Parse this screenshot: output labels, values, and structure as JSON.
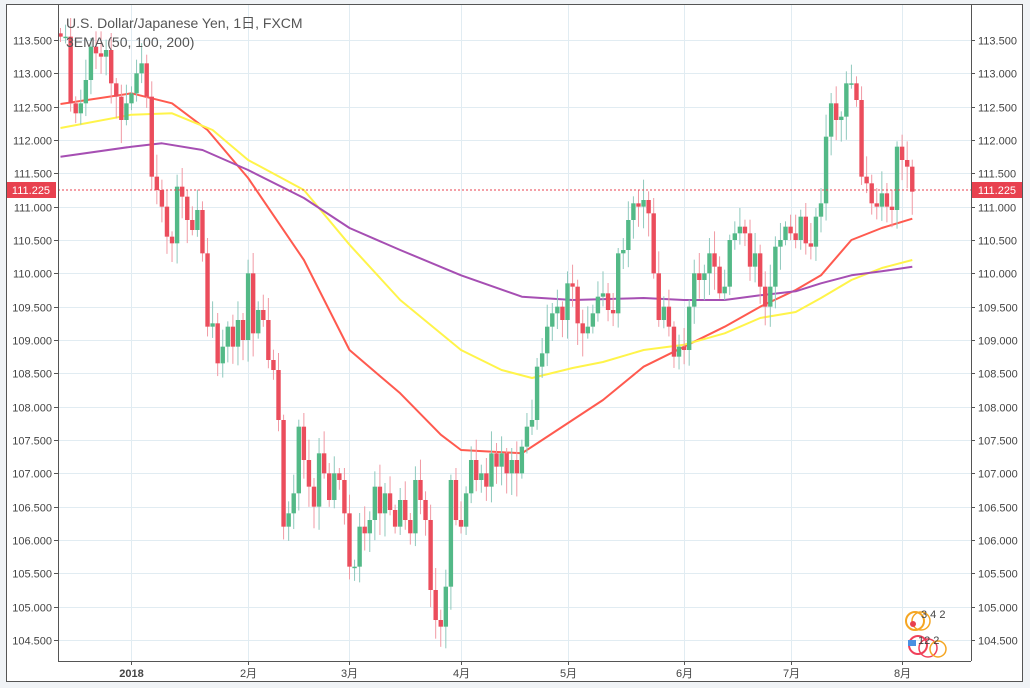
{
  "legend": {
    "title": "U.S. Dollar/Japanese Yen, 1日, FXCM",
    "indicator": "3EMA (50, 100, 200)"
  },
  "badge": {
    "line1": "3 4 2",
    "line2": "12 2"
  },
  "colors": {
    "up": "#53b987",
    "down": "#eb4d5c",
    "ema50": "#ff5a4f",
    "ema100": "#fff44a",
    "ema200": "#a64fb3",
    "grid": "#e1ecf2",
    "last_price": "#e8414f"
  },
  "chart_data": {
    "type": "candlestick",
    "title": "U.S. Dollar/Japanese Yen, 1日, FXCM",
    "ylim": [
      104.0,
      113.95
    ],
    "y_ticks": [
      "113.500",
      "113.000",
      "112.500",
      "112.000",
      "111.500",
      "111.000",
      "110.500",
      "110.000",
      "109.500",
      "109.000",
      "108.500",
      "108.000",
      "107.500",
      "107.000",
      "106.500",
      "106.000",
      "105.500",
      "105.000",
      "104.500"
    ],
    "x_ticks": [
      {
        "label": "2018",
        "bar": 14
      },
      {
        "label": "2月",
        "bar": 37
      },
      {
        "label": "3月",
        "bar": 57
      },
      {
        "label": "4月",
        "bar": 79
      },
      {
        "label": "5月",
        "bar": 100
      },
      {
        "label": "6月",
        "bar": 123
      },
      {
        "label": "7月",
        "bar": 144
      },
      {
        "label": "8月",
        "bar": 166
      }
    ],
    "last_price": "111.225",
    "closes": [
      113.55,
      113.55,
      112.55,
      112.4,
      112.55,
      112.9,
      113.4,
      113.3,
      113.25,
      113.35,
      112.85,
      112.65,
      112.3,
      112.55,
      112.7,
      113.0,
      113.15,
      112.65,
      111.45,
      111.25,
      111.0,
      110.55,
      110.45,
      111.3,
      111.15,
      110.8,
      110.65,
      110.95,
      110.3,
      109.2,
      109.25,
      108.65,
      108.9,
      109.2,
      108.9,
      109.3,
      109.0,
      110.0,
      109.1,
      109.45,
      109.3,
      108.7,
      108.55,
      107.8,
      106.2,
      106.4,
      106.7,
      107.7,
      107.2,
      106.8,
      106.5,
      107.3,
      107.0,
      106.6,
      107.0,
      106.9,
      106.4,
      105.6,
      105.6,
      106.2,
      106.1,
      106.3,
      106.8,
      106.4,
      106.7,
      106.45,
      106.2,
      106.6,
      106.3,
      106.1,
      106.9,
      106.6,
      106.3,
      105.25,
      104.8,
      104.7,
      105.3,
      106.9,
      106.3,
      106.2,
      106.7,
      107.2,
      106.9,
      107.0,
      106.8,
      107.3,
      107.1,
      107.3,
      107.0,
      107.2,
      107.0,
      107.4,
      107.7,
      107.8,
      108.6,
      108.8,
      109.2,
      109.4,
      109.5,
      109.3,
      109.85,
      109.8,
      109.25,
      109.1,
      109.2,
      109.4,
      109.65,
      109.7,
      109.45,
      109.4,
      110.3,
      110.35,
      110.8,
      111.05,
      111.0,
      111.1,
      110.9,
      110.0,
      109.3,
      109.5,
      109.2,
      108.75,
      108.9,
      108.85,
      109.5,
      110.0,
      109.9,
      110.0,
      110.3,
      110.1,
      109.7,
      109.8,
      110.5,
      110.6,
      110.7,
      110.6,
      110.1,
      110.3,
      109.8,
      109.5,
      109.8,
      110.4,
      110.5,
      110.7,
      110.6,
      110.5,
      110.85,
      110.45,
      110.4,
      110.85,
      111.05,
      112.05,
      112.55,
      112.3,
      112.35,
      112.85,
      112.85,
      112.6,
      111.45,
      111.35,
      111.05,
      111.0,
      111.2,
      111.0,
      110.95,
      111.9,
      111.7,
      111.6,
      111.225
    ],
    "series": [
      {
        "name": "EMA 50",
        "points": [
          [
            0,
            112.54
          ],
          [
            14,
            112.7
          ],
          [
            22,
            112.55
          ],
          [
            29,
            112.15
          ],
          [
            37,
            111.43
          ],
          [
            48,
            110.2
          ],
          [
            57,
            108.85
          ],
          [
            67,
            108.2
          ],
          [
            75,
            107.58
          ],
          [
            79,
            107.35
          ],
          [
            91,
            107.3
          ],
          [
            95,
            107.5
          ],
          [
            101,
            107.8
          ],
          [
            107,
            108.1
          ],
          [
            115,
            108.6
          ],
          [
            123,
            108.9
          ],
          [
            131,
            109.2
          ],
          [
            138,
            109.5
          ],
          [
            145,
            109.75
          ],
          [
            150,
            109.97
          ],
          [
            156,
            110.5
          ],
          [
            162,
            110.68
          ],
          [
            168,
            110.82
          ]
        ]
      },
      {
        "name": "EMA 100",
        "points": [
          [
            0,
            112.18
          ],
          [
            14,
            112.38
          ],
          [
            22,
            112.4
          ],
          [
            30,
            112.15
          ],
          [
            37,
            111.7
          ],
          [
            48,
            111.25
          ],
          [
            57,
            110.43
          ],
          [
            67,
            109.6
          ],
          [
            79,
            108.85
          ],
          [
            87,
            108.55
          ],
          [
            93,
            108.43
          ],
          [
            101,
            108.58
          ],
          [
            107,
            108.67
          ],
          [
            115,
            108.85
          ],
          [
            123,
            108.93
          ],
          [
            131,
            109.1
          ],
          [
            138,
            109.33
          ],
          [
            145,
            109.42
          ],
          [
            150,
            109.63
          ],
          [
            156,
            109.9
          ],
          [
            162,
            110.08
          ],
          [
            168,
            110.2
          ]
        ]
      },
      {
        "name": "EMA 200",
        "points": [
          [
            0,
            111.75
          ],
          [
            14,
            111.9
          ],
          [
            20,
            111.95
          ],
          [
            28,
            111.85
          ],
          [
            37,
            111.55
          ],
          [
            48,
            111.13
          ],
          [
            57,
            110.68
          ],
          [
            67,
            110.35
          ],
          [
            79,
            109.97
          ],
          [
            91,
            109.65
          ],
          [
            101,
            109.6
          ],
          [
            115,
            109.63
          ],
          [
            123,
            109.6
          ],
          [
            131,
            109.6
          ],
          [
            138,
            109.67
          ],
          [
            145,
            109.73
          ],
          [
            150,
            109.85
          ],
          [
            156,
            109.97
          ],
          [
            162,
            110.03
          ],
          [
            168,
            110.1
          ]
        ]
      }
    ]
  }
}
